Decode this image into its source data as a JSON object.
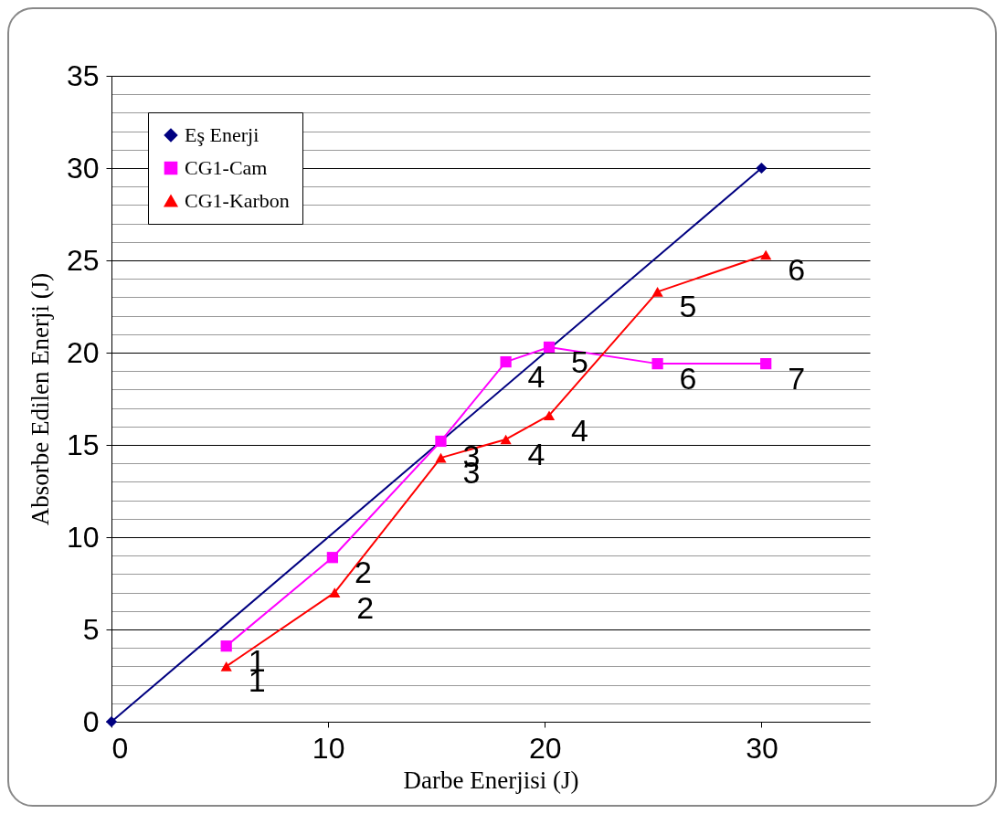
{
  "chart_data": {
    "type": "line",
    "xlabel": "Darbe Enerjisi (J)",
    "ylabel": "Absorbe Edilen Enerji (J)",
    "xlim": [
      0,
      35
    ],
    "xticks": [
      0,
      10,
      20,
      30
    ],
    "ylim": [
      0,
      35
    ],
    "yticks": [
      0,
      {
        "value": 1,
        "label": null
      },
      {
        "value": 2,
        "label": null
      },
      {
        "value": 3,
        "label": null
      },
      {
        "value": 4,
        "label": null
      },
      5,
      {
        "value": 6,
        "label": null
      },
      {
        "value": 7,
        "label": null
      },
      {
        "value": 8,
        "label": null
      },
      {
        "value": 9,
        "label": null
      },
      10,
      {
        "value": 11,
        "label": null
      },
      {
        "value": 12,
        "label": null
      },
      {
        "value": 13,
        "label": null
      },
      {
        "value": 14,
        "label": null
      },
      15,
      {
        "value": 16,
        "label": null
      },
      {
        "value": 17,
        "label": null
      },
      {
        "value": 18,
        "label": null
      },
      {
        "value": 19,
        "label": null
      },
      20,
      {
        "value": 21,
        "label": null
      },
      {
        "value": 22,
        "label": null
      },
      {
        "value": 23,
        "label": null
      },
      {
        "value": 24,
        "label": null
      },
      25,
      {
        "value": 26,
        "label": null
      },
      {
        "value": 27,
        "label": null
      },
      {
        "value": 28,
        "label": null
      },
      {
        "value": 29,
        "label": null
      },
      30,
      {
        "value": 31,
        "label": null
      },
      {
        "value": 32,
        "label": null
      },
      {
        "value": 33,
        "label": null
      },
      {
        "value": 34,
        "label": null
      },
      35
    ],
    "grid": "y",
    "legend": "top left",
    "line_style": "solid",
    "series": [
      {
        "name": "Eş Enerji",
        "color": "#000080",
        "marker": "diamond",
        "x": [
          0,
          30
        ],
        "values": [
          0,
          30
        ]
      },
      {
        "name": "CG1-Cam",
        "color": "#ff00ff",
        "marker": "square",
        "x": [
          5.3,
          10.2,
          15.2,
          18.2,
          20.2,
          25.2,
          30.2
        ],
        "values": [
          4.1,
          8.9,
          15.2,
          19.5,
          20.3,
          19.4,
          19.4
        ]
      },
      {
        "name": "CG1-Karbon",
        "color": "#ff0000",
        "marker": "triangle",
        "x": [
          5.3,
          10.3,
          15.2,
          18.2,
          20.2,
          25.2,
          30.2
        ],
        "values": [
          3.0,
          7.0,
          14.3,
          15.3,
          16.6,
          23.3,
          25.3
        ]
      }
    ],
    "annotations": [
      {
        "text": "1",
        "x": 5.3,
        "y": 4.1
      },
      {
        "text": "2",
        "x": 10.2,
        "y": 8.9
      },
      {
        "text": "3",
        "x": 15.2,
        "y": 15.2
      },
      {
        "text": "4",
        "x": 18.2,
        "y": 19.5
      },
      {
        "text": "5",
        "x": 20.2,
        "y": 20.3
      },
      {
        "text": "6",
        "x": 25.2,
        "y": 19.4
      },
      {
        "text": "7",
        "x": 30.2,
        "y": 19.4
      },
      {
        "text": "1",
        "x": 5.3,
        "y": 3.0
      },
      {
        "text": "2",
        "x": 10.3,
        "y": 7.0
      },
      {
        "text": "3",
        "x": 15.2,
        "y": 14.3
      },
      {
        "text": "4",
        "x": 18.2,
        "y": 15.3
      },
      {
        "text": "4",
        "x": 20.2,
        "y": 16.6
      },
      {
        "text": "5",
        "x": 25.2,
        "y": 23.3
      },
      {
        "text": "6",
        "x": 30.2,
        "y": 25.3
      }
    ]
  }
}
